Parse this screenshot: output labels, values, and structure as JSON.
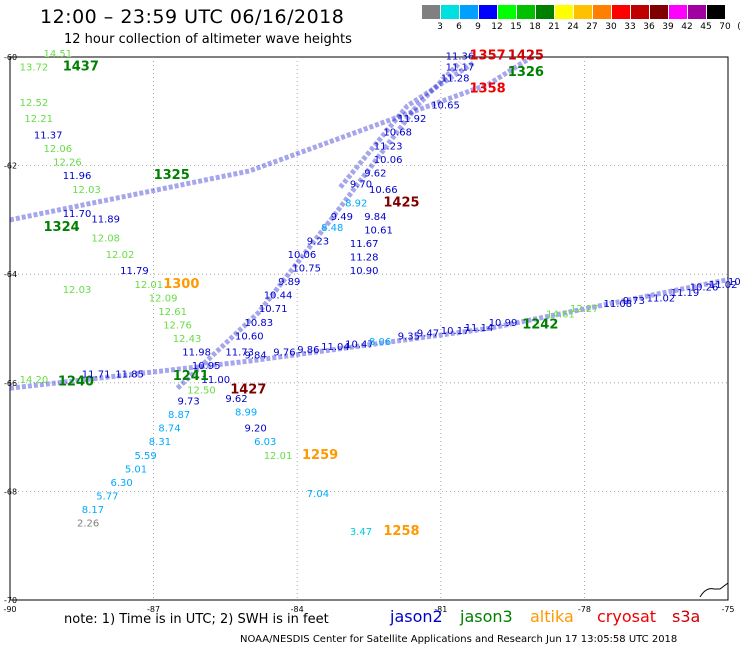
{
  "title": "12:00 – 23:59 UTC 06/16/2018",
  "subtitle": "12 hour collection of altimeter wave heights",
  "scale": {
    "labels": [
      "3",
      "6",
      "9",
      "12",
      "15",
      "18",
      "21",
      "24",
      "27",
      "30",
      "33",
      "36",
      "39",
      "42",
      "45",
      "70",
      "(ft)"
    ],
    "colors": [
      "#808080",
      "#00e0e0",
      "#00a0ff",
      "#0000ff",
      "#00ff00",
      "#00c000",
      "#008000",
      "#ffff00",
      "#ffc000",
      "#ff8000",
      "#ff0000",
      "#c00000",
      "#800000",
      "#ff00ff",
      "#a000a0",
      "#000000"
    ]
  },
  "axes": {
    "lat_labels": [
      "-60",
      "-62",
      "-64",
      "-66",
      "-68",
      "-70"
    ],
    "lon_labels": [
      "-90",
      "-87",
      "-84",
      "-81",
      "-78",
      "-75"
    ]
  },
  "note": "note: 1) Time is in UTC; 2) SWH is in feet",
  "legend": [
    {
      "name": "jason2",
      "color": "#0000cc"
    },
    {
      "name": "jason3",
      "color": "#008000"
    },
    {
      "name": "altika",
      "color": "#ff9900"
    },
    {
      "name": "cryosat",
      "color": "#ee0000"
    },
    {
      "name": "s3a",
      "color": "#cc0000"
    }
  ],
  "footer": "NOAA/NESDIS Center for Satellite Applications and Research    Jun 17 13:05:58 UTC 2018",
  "labels": [
    {
      "t": "11.36",
      "c": "#0000cc",
      "lon": -80.9,
      "lat": -60.05
    },
    {
      "t": "1357",
      "c": "#ee0000",
      "lon": -80.4,
      "lat": -60.05
    },
    {
      "t": "1425",
      "c": "#cc0000",
      "lon": -79.6,
      "lat": -60.05
    },
    {
      "t": "11.17",
      "c": "#0000cc",
      "lon": -80.9,
      "lat": -60.25
    },
    {
      "t": "11.28",
      "c": "#0000cc",
      "lon": -81.0,
      "lat": -60.45
    },
    {
      "t": "1326",
      "c": "#008000",
      "lon": -79.6,
      "lat": -60.35
    },
    {
      "t": "1358",
      "c": "#ee0000",
      "lon": -80.4,
      "lat": -60.65
    },
    {
      "t": "10.65",
      "c": "#0000cc",
      "lon": -81.2,
      "lat": -60.95
    },
    {
      "t": "1437",
      "c": "#008000",
      "lon": -88.9,
      "lat": -60.25
    },
    {
      "t": "14.51",
      "c": "#66dd44",
      "lon": -89.3,
      "lat": -60.0
    },
    {
      "t": "13.72",
      "c": "#66dd44",
      "lon": -89.8,
      "lat": -60.25
    },
    {
      "t": "12.52",
      "c": "#66dd44",
      "lon": -89.8,
      "lat": -60.9
    },
    {
      "t": "12.21",
      "c": "#66dd44",
      "lon": -89.7,
      "lat": -61.2
    },
    {
      "t": "11.37",
      "c": "#0000cc",
      "lon": -89.5,
      "lat": -61.5
    },
    {
      "t": "12.06",
      "c": "#66dd44",
      "lon": -89.3,
      "lat": -61.75
    },
    {
      "t": "12.26",
      "c": "#66dd44",
      "lon": -89.1,
      "lat": -62.0
    },
    {
      "t": "11.96",
      "c": "#0000cc",
      "lon": -88.9,
      "lat": -62.25
    },
    {
      "t": "12.03",
      "c": "#66dd44",
      "lon": -88.7,
      "lat": -62.5
    },
    {
      "t": "1325",
      "c": "#008000",
      "lon": -87.0,
      "lat": -62.25
    },
    {
      "t": "11.70",
      "c": "#0000cc",
      "lon": -88.9,
      "lat": -62.95
    },
    {
      "t": "11.89",
      "c": "#0000cc",
      "lon": -88.3,
      "lat": -63.05
    },
    {
      "t": "1324",
      "c": "#008000",
      "lon": -89.3,
      "lat": -63.2
    },
    {
      "t": "12.08",
      "c": "#66dd44",
      "lon": -88.3,
      "lat": -63.4
    },
    {
      "t": "12.02",
      "c": "#66dd44",
      "lon": -88.0,
      "lat": -63.7
    },
    {
      "t": "11.79",
      "c": "#0000cc",
      "lon": -87.7,
      "lat": -64.0
    },
    {
      "t": "12.01",
      "c": "#66dd44",
      "lon": -87.4,
      "lat": -64.25
    },
    {
      "t": "1300",
      "c": "#ff9900",
      "lon": -86.8,
      "lat": -64.25
    },
    {
      "t": "12.09",
      "c": "#66dd44",
      "lon": -87.1,
      "lat": -64.5
    },
    {
      "t": "12.61",
      "c": "#66dd44",
      "lon": -86.9,
      "lat": -64.75
    },
    {
      "t": "12.76",
      "c": "#66dd44",
      "lon": -86.8,
      "lat": -65.0
    },
    {
      "t": "12.43",
      "c": "#66dd44",
      "lon": -86.6,
      "lat": -65.25
    },
    {
      "t": "11.98",
      "c": "#0000cc",
      "lon": -86.4,
      "lat": -65.5
    },
    {
      "t": "10.95",
      "c": "#0000cc",
      "lon": -86.2,
      "lat": -65.75
    },
    {
      "t": "11.00",
      "c": "#0000cc",
      "lon": -86.0,
      "lat": -66.0
    },
    {
      "t": "1241",
      "c": "#008000",
      "lon": -86.6,
      "lat": -65.95
    },
    {
      "t": "12.50",
      "c": "#66dd44",
      "lon": -86.3,
      "lat": -66.2
    },
    {
      "t": "1427",
      "c": "#800000",
      "lon": -85.4,
      "lat": -66.2
    },
    {
      "t": "9.73",
      "c": "#0000cc",
      "lon": -86.5,
      "lat": -66.4
    },
    {
      "t": "9.62",
      "c": "#0000cc",
      "lon": -85.5,
      "lat": -66.35
    },
    {
      "t": "8.87",
      "c": "#00aaff",
      "lon": -86.7,
      "lat": -66.65
    },
    {
      "t": "8.99",
      "c": "#00aaff",
      "lon": -85.3,
      "lat": -66.6
    },
    {
      "t": "8.74",
      "c": "#00aaff",
      "lon": -86.9,
      "lat": -66.9
    },
    {
      "t": "9.20",
      "c": "#0000cc",
      "lon": -85.1,
      "lat": -66.9
    },
    {
      "t": "8.31",
      "c": "#00aaff",
      "lon": -87.1,
      "lat": -67.15
    },
    {
      "t": "6.03",
      "c": "#00aaff",
      "lon": -84.9,
      "lat": -67.15
    },
    {
      "t": "5.59",
      "c": "#00aaff",
      "lon": -87.4,
      "lat": -67.4
    },
    {
      "t": "12.01",
      "c": "#66dd44",
      "lon": -84.7,
      "lat": -67.4
    },
    {
      "t": "1259",
      "c": "#ff9900",
      "lon": -83.9,
      "lat": -67.4
    },
    {
      "t": "5.01",
      "c": "#00aaff",
      "lon": -87.6,
      "lat": -67.65
    },
    {
      "t": "6.30",
      "c": "#00aaff",
      "lon": -87.9,
      "lat": -67.9
    },
    {
      "t": "5.77",
      "c": "#00aaff",
      "lon": -88.2,
      "lat": -68.15
    },
    {
      "t": "7.04",
      "c": "#00aaff",
      "lon": -83.8,
      "lat": -68.1
    },
    {
      "t": "8.17",
      "c": "#00aaff",
      "lon": -88.5,
      "lat": -68.4
    },
    {
      "t": "2.26",
      "c": "#808080",
      "lon": -88.6,
      "lat": -68.65
    },
    {
      "t": "3.47",
      "c": "#00ccdd",
      "lon": -82.9,
      "lat": -68.8
    },
    {
      "t": "1258",
      "c": "#ff9900",
      "lon": -82.2,
      "lat": -68.8
    },
    {
      "t": "1240",
      "c": "#008000",
      "lon": -89.0,
      "lat": -66.05
    },
    {
      "t": "14.20",
      "c": "#66dd44",
      "lon": -89.8,
      "lat": -66.0
    },
    {
      "t": "11.71",
      "c": "#0000cc",
      "lon": -88.5,
      "lat": -65.9
    },
    {
      "t": "11.85",
      "c": "#0000cc",
      "lon": -87.8,
      "lat": -65.9
    },
    {
      "t": "9.84",
      "c": "#0000cc",
      "lon": -85.1,
      "lat": -65.55
    },
    {
      "t": "9.76",
      "c": "#0000cc",
      "lon": -84.5,
      "lat": -65.5
    },
    {
      "t": "9.86",
      "c": "#0000cc",
      "lon": -84.0,
      "lat": -65.45
    },
    {
      "t": "11.04",
      "c": "#0000cc",
      "lon": -83.5,
      "lat": -65.4
    },
    {
      "t": "10.47",
      "c": "#0000cc",
      "lon": -83.0,
      "lat": -65.35
    },
    {
      "t": "8.06",
      "c": "#00aaff",
      "lon": -82.5,
      "lat": -65.3
    },
    {
      "t": "9.35",
      "c": "#0000cc",
      "lon": -81.9,
      "lat": -65.2
    },
    {
      "t": "9.47",
      "c": "#0000cc",
      "lon": -81.5,
      "lat": -65.15
    },
    {
      "t": "10.17",
      "c": "#0000cc",
      "lon": -81.0,
      "lat": -65.1
    },
    {
      "t": "11.14",
      "c": "#0000cc",
      "lon": -80.5,
      "lat": -65.05
    },
    {
      "t": "10.99",
      "c": "#0000cc",
      "lon": -80.0,
      "lat": -64.95
    },
    {
      "t": "1242",
      "c": "#008000",
      "lon": -79.3,
      "lat": -65.0
    },
    {
      "t": "14.61",
      "c": "#66dd44",
      "lon": -78.8,
      "lat": -64.8
    },
    {
      "t": "12.27",
      "c": "#66dd44",
      "lon": -78.3,
      "lat": -64.7
    },
    {
      "t": "11.08",
      "c": "#0000cc",
      "lon": -77.6,
      "lat": -64.6
    },
    {
      "t": "9.73",
      "c": "#0000cc",
      "lon": -77.2,
      "lat": -64.55
    },
    {
      "t": "11.02",
      "c": "#0000cc",
      "lon": -76.7,
      "lat": -64.5
    },
    {
      "t": "11.19",
      "c": "#0000cc",
      "lon": -76.2,
      "lat": -64.4
    },
    {
      "t": "10.26",
      "c": "#0000cc",
      "lon": -75.8,
      "lat": -64.3
    },
    {
      "t": "11.02",
      "c": "#0000cc",
      "lon": -75.4,
      "lat": -64.25
    },
    {
      "t": "10.09",
      "c": "#0000cc",
      "lon": -75.0,
      "lat": -64.2
    },
    {
      "t": "11.73",
      "c": "#0000cc",
      "lon": -85.5,
      "lat": -65.5
    },
    {
      "t": "10.60",
      "c": "#0000cc",
      "lon": -85.3,
      "lat": -65.2
    },
    {
      "t": "10.83",
      "c": "#0000cc",
      "lon": -85.1,
      "lat": -64.95
    },
    {
      "t": "10.71",
      "c": "#0000cc",
      "lon": -84.8,
      "lat": -64.7
    },
    {
      "t": "10.44",
      "c": "#0000cc",
      "lon": -84.7,
      "lat": -64.45
    },
    {
      "t": "9.89",
      "c": "#0000cc",
      "lon": -84.4,
      "lat": -64.2
    },
    {
      "t": "10.75",
      "c": "#0000cc",
      "lon": -84.1,
      "lat": -63.95
    },
    {
      "t": "10.06",
      "c": "#0000cc",
      "lon": -84.2,
      "lat": -63.7
    },
    {
      "t": "9.23",
      "c": "#0000cc",
      "lon": -83.8,
      "lat": -63.45
    },
    {
      "t": "8.48",
      "c": "#00aaff",
      "lon": -83.5,
      "lat": -63.2
    },
    {
      "t": "9.49",
      "c": "#0000cc",
      "lon": -83.3,
      "lat": -63.0
    },
    {
      "t": "8.92",
      "c": "#00aaff",
      "lon": -83.0,
      "lat": -62.75
    },
    {
      "t": "9.84",
      "c": "#0000cc",
      "lon": -82.6,
      "lat": -63.0
    },
    {
      "t": "1425",
      "c": "#800000",
      "lon": -82.2,
      "lat": -62.75
    },
    {
      "t": "10.61",
      "c": "#0000cc",
      "lon": -82.6,
      "lat": -63.25
    },
    {
      "t": "11.67",
      "c": "#0000cc",
      "lon": -82.9,
      "lat": -63.5
    },
    {
      "t": "11.28",
      "c": "#0000cc",
      "lon": -82.9,
      "lat": -63.75
    },
    {
      "t": "10.90",
      "c": "#0000cc",
      "lon": -82.9,
      "lat": -64.0
    },
    {
      "t": "10.66",
      "c": "#0000cc",
      "lon": -82.5,
      "lat": -62.5
    },
    {
      "t": "9.70",
      "c": "#0000cc",
      "lon": -82.9,
      "lat": -62.4
    },
    {
      "t": "9.62",
      "c": "#0000cc",
      "lon": -82.6,
      "lat": -62.2
    },
    {
      "t": "10.06",
      "c": "#0000cc",
      "lon": -82.4,
      "lat": -61.95
    },
    {
      "t": "11.23",
      "c": "#0000cc",
      "lon": -82.4,
      "lat": -61.7
    },
    {
      "t": "10.68",
      "c": "#0000cc",
      "lon": -82.2,
      "lat": -61.45
    },
    {
      "t": "11.92",
      "c": "#0000cc",
      "lon": -81.9,
      "lat": -61.2
    },
    {
      "t": "12.03",
      "c": "#66dd44",
      "lon": -88.9,
      "lat": -64.35
    }
  ],
  "tracks": [
    {
      "c": "#0000cc",
      "pts": [
        [
          -90,
          -63.0
        ],
        [
          -85,
          -62.1
        ],
        [
          -80,
          -60.5
        ],
        [
          -79.1,
          -60.0
        ]
      ]
    },
    {
      "c": "#0000cc",
      "pts": [
        [
          -90,
          -66.1
        ],
        [
          -85,
          -65.6
        ],
        [
          -80,
          -65.0
        ],
        [
          -75,
          -64.1
        ]
      ]
    },
    {
      "c": "#0000cc",
      "pts": [
        [
          -86.5,
          -66.1
        ],
        [
          -84.8,
          -64.7
        ],
        [
          -83.3,
          -63.0
        ],
        [
          -81.5,
          -60.9
        ],
        [
          -80.6,
          -60.1
        ]
      ]
    },
    {
      "c": "#0000cc",
      "pts": [
        [
          -83.1,
          -62.4
        ],
        [
          -81.7,
          -60.9
        ],
        [
          -80.3,
          -60.1
        ]
      ]
    }
  ]
}
